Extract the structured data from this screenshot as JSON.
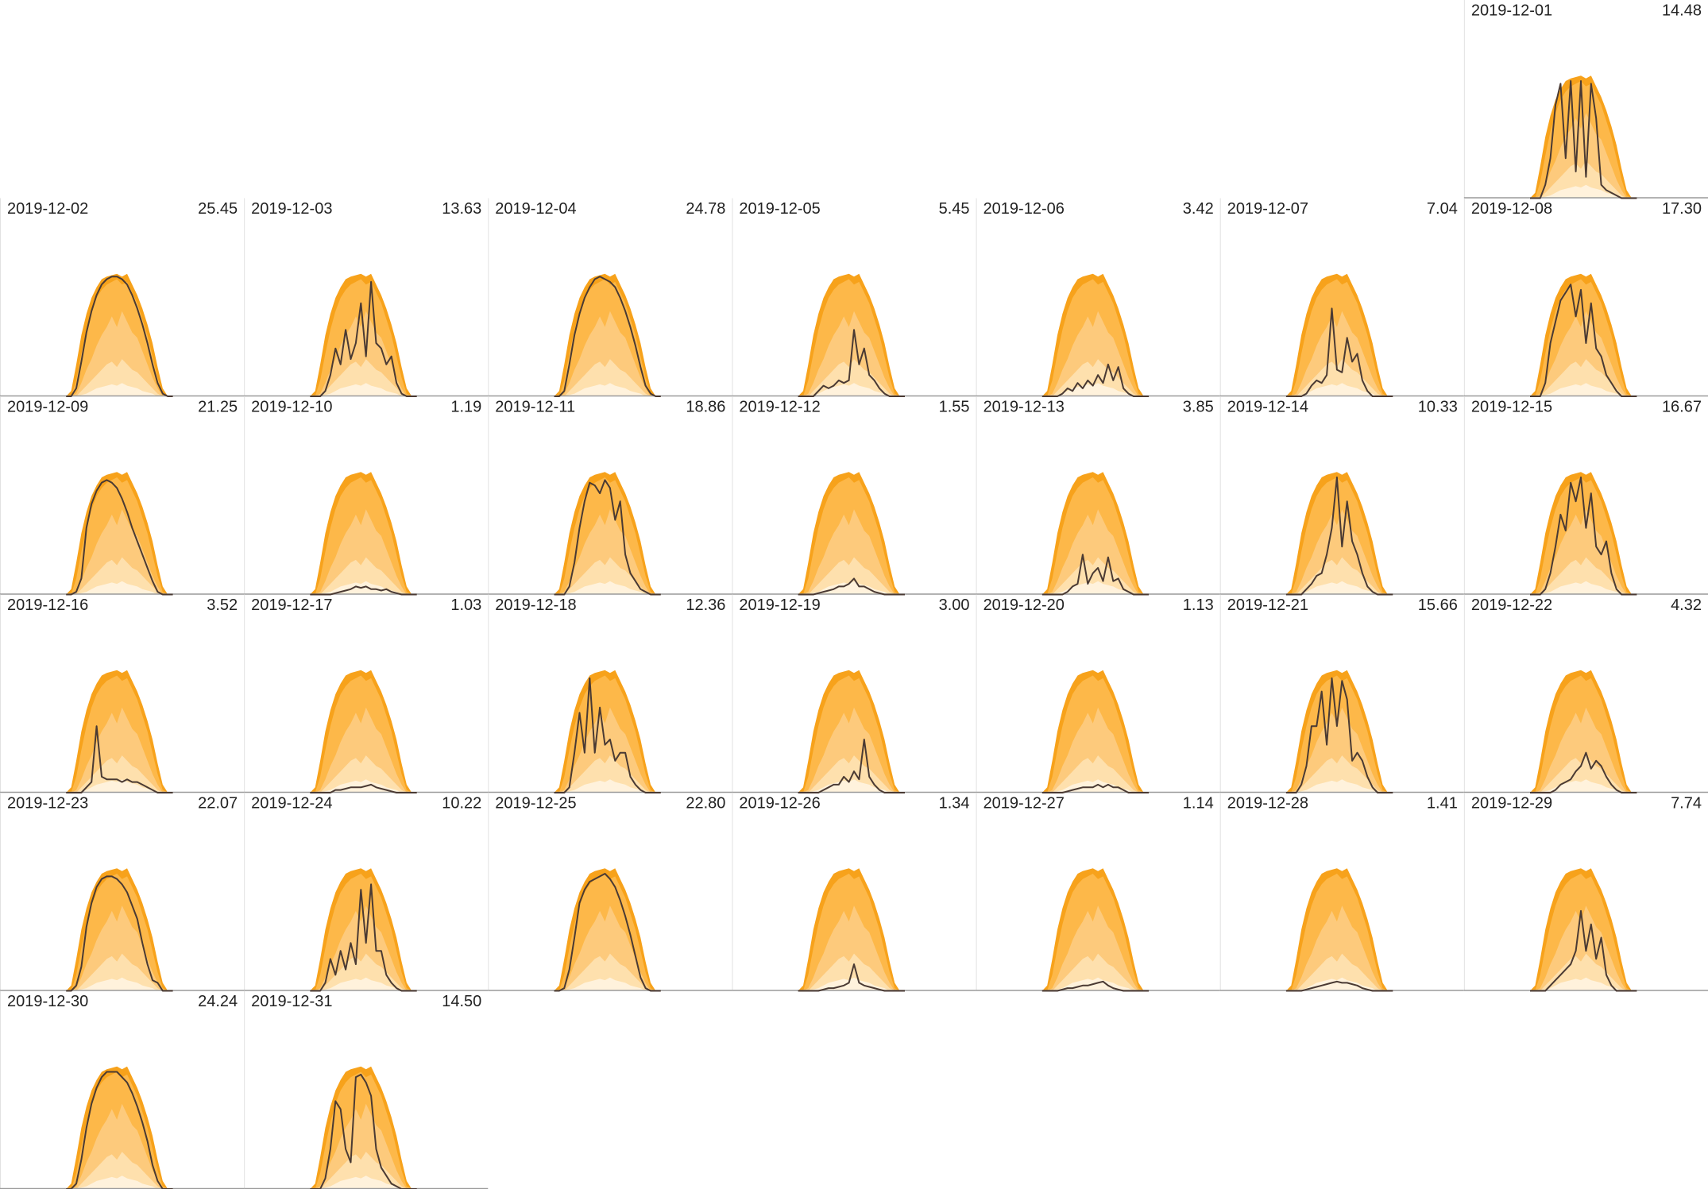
{
  "chart_data": {
    "type": "area",
    "xlim": [
      0,
      24
    ],
    "ylim": [
      0,
      6.25
    ],
    "x": [
      6.5,
      7,
      7.5,
      8,
      8.5,
      9,
      9.5,
      10,
      10.5,
      11,
      11.5,
      12,
      12.5,
      13,
      13.5,
      14,
      14.5,
      15,
      15.5,
      16,
      16.5,
      17
    ],
    "bands": [
      {
        "color": "#f7a21b",
        "values": [
          0,
          0.2,
          1.2,
          2.3,
          3.1,
          3.7,
          4.1,
          4.4,
          4.5,
          4.55,
          4.6,
          4.5,
          4.6,
          4.2,
          3.8,
          3.3,
          2.7,
          2.0,
          1.1,
          0.3,
          0,
          0
        ]
      },
      {
        "color": "#fdb849",
        "values": [
          0,
          0,
          0.6,
          1.6,
          2.5,
          3.2,
          3.7,
          4.0,
          4.2,
          4.3,
          4.4,
          4.2,
          4.3,
          3.9,
          3.5,
          2.9,
          2.3,
          1.5,
          0.7,
          0.1,
          0,
          0
        ]
      },
      {
        "color": "#fdca7c",
        "values": [
          0,
          0,
          0.1,
          0.5,
          1.0,
          1.4,
          1.9,
          2.3,
          2.6,
          3.0,
          2.6,
          3.2,
          2.8,
          2.4,
          2.2,
          1.7,
          1.2,
          0.7,
          0.3,
          0,
          0,
          0
        ]
      },
      {
        "color": "#fee0ad",
        "values": [
          0,
          0,
          0,
          0.2,
          0.4,
          0.6,
          0.8,
          1.0,
          1.2,
          1.3,
          1.1,
          1.4,
          1.2,
          1.0,
          0.9,
          0.7,
          0.5,
          0.3,
          0.1,
          0,
          0,
          0
        ]
      },
      {
        "color": "#fff2dc",
        "values": [
          0,
          0,
          0,
          0.05,
          0.1,
          0.2,
          0.3,
          0.35,
          0.4,
          0.45,
          0.4,
          0.5,
          0.4,
          0.35,
          0.3,
          0.2,
          0.15,
          0.1,
          0,
          0,
          0,
          0
        ]
      }
    ],
    "line_color": "#4a3a33",
    "dates": [
      "2019-12-01",
      "2019-12-02",
      "2019-12-03",
      "2019-12-04",
      "2019-12-05",
      "2019-12-06",
      "2019-12-07",
      "2019-12-08",
      "2019-12-09",
      "2019-12-10",
      "2019-12-11",
      "2019-12-12",
      "2019-12-13",
      "2019-12-14",
      "2019-12-15",
      "2019-12-16",
      "2019-12-17",
      "2019-12-18",
      "2019-12-19",
      "2019-12-20",
      "2019-12-21",
      "2019-12-22",
      "2019-12-23",
      "2019-12-24",
      "2019-12-25",
      "2019-12-26",
      "2019-12-27",
      "2019-12-28",
      "2019-12-29",
      "2019-12-30",
      "2019-12-31"
    ],
    "values": [
      14.48,
      25.45,
      13.63,
      24.78,
      5.45,
      3.42,
      7.04,
      17.3,
      21.25,
      1.19,
      18.86,
      1.55,
      3.85,
      10.33,
      16.67,
      3.52,
      1.03,
      12.36,
      3.0,
      1.13,
      15.66,
      4.32,
      22.07,
      10.22,
      22.8,
      1.34,
      1.14,
      1.41,
      7.74,
      24.24,
      14.5
    ],
    "value_labels": [
      "14.48",
      "25.45",
      "13.63",
      "24.78",
      "5.45",
      "3.42",
      "7.04",
      "17.30",
      "21.25",
      "1.19",
      "18.86",
      "1.55",
      "3.85",
      "10.33",
      "16.67",
      "3.52",
      "1.03",
      "12.36",
      "3.00",
      "1.13",
      "15.66",
      "4.32",
      "22.07",
      "10.22",
      "22.80",
      "1.34",
      "1.14",
      "1.41",
      "7.74",
      "24.24",
      "14.50"
    ],
    "lines": [
      [
        0,
        0,
        0,
        0.5,
        1.5,
        3.5,
        4.3,
        1.5,
        4.4,
        1.0,
        4.4,
        0.8,
        4.3,
        3.0,
        0.5,
        0.3,
        0.2,
        0.1,
        0,
        0,
        0,
        0
      ],
      [
        0,
        0,
        0.3,
        1.3,
        2.4,
        3.2,
        3.8,
        4.2,
        4.4,
        4.5,
        4.5,
        4.4,
        4.2,
        3.8,
        3.3,
        2.7,
        2.0,
        1.2,
        0.5,
        0.1,
        0,
        0
      ],
      [
        0,
        0,
        0,
        0.2,
        0.8,
        1.8,
        1.2,
        2.5,
        1.4,
        2.0,
        3.5,
        1.5,
        4.3,
        2.0,
        1.8,
        1.2,
        1.5,
        0.5,
        0.1,
        0,
        0,
        0
      ],
      [
        0,
        0,
        0.2,
        1.2,
        2.3,
        3.1,
        3.7,
        4.1,
        4.4,
        4.5,
        4.4,
        4.3,
        4.1,
        3.7,
        3.2,
        2.6,
        1.9,
        1.1,
        0.4,
        0.1,
        0,
        0
      ],
      [
        0,
        0,
        0,
        0,
        0.2,
        0.4,
        0.3,
        0.4,
        0.6,
        0.5,
        0.6,
        2.5,
        1.2,
        1.8,
        0.8,
        0.6,
        0.3,
        0.1,
        0,
        0,
        0,
        0
      ],
      [
        0,
        0,
        0,
        0,
        0.1,
        0.3,
        0.2,
        0.5,
        0.3,
        0.6,
        0.4,
        0.8,
        0.5,
        1.2,
        0.6,
        1.1,
        0.3,
        0.1,
        0,
        0,
        0,
        0
      ],
      [
        0,
        0,
        0,
        0,
        0.1,
        0.4,
        0.6,
        0.5,
        0.8,
        3.3,
        1.0,
        0.9,
        2.2,
        1.3,
        1.6,
        0.6,
        0.2,
        0,
        0,
        0,
        0,
        0
      ],
      [
        0,
        0,
        0,
        0.5,
        2.0,
        2.8,
        3.6,
        3.9,
        4.2,
        3.0,
        4.0,
        2.0,
        3.5,
        1.8,
        1.5,
        0.8,
        0.5,
        0.2,
        0,
        0,
        0,
        0
      ],
      [
        0,
        0,
        0.1,
        0.6,
        2.5,
        3.4,
        3.9,
        4.2,
        4.3,
        4.2,
        4.0,
        3.6,
        3.1,
        2.5,
        2.0,
        1.5,
        1.0,
        0.5,
        0.1,
        0,
        0,
        0
      ],
      [
        0,
        0,
        0,
        0,
        0,
        0.05,
        0.1,
        0.15,
        0.2,
        0.3,
        0.25,
        0.3,
        0.2,
        0.2,
        0.15,
        0.2,
        0.1,
        0.05,
        0,
        0,
        0,
        0
      ],
      [
        0,
        0,
        0,
        0.3,
        1.2,
        2.5,
        3.5,
        4.2,
        4.1,
        3.8,
        4.3,
        4.0,
        2.8,
        3.5,
        1.5,
        0.8,
        0.5,
        0.2,
        0.1,
        0,
        0,
        0
      ],
      [
        0,
        0,
        0,
        0,
        0.05,
        0.1,
        0.15,
        0.2,
        0.3,
        0.3,
        0.4,
        0.6,
        0.3,
        0.3,
        0.2,
        0.1,
        0.05,
        0,
        0,
        0,
        0,
        0
      ],
      [
        0,
        0,
        0,
        0,
        0,
        0.1,
        0.3,
        0.4,
        1.5,
        0.4,
        0.8,
        1.0,
        0.5,
        1.4,
        0.5,
        0.6,
        0.2,
        0.1,
        0,
        0,
        0,
        0
      ],
      [
        0,
        0,
        0,
        0,
        0.2,
        0.4,
        0.7,
        0.8,
        1.5,
        2.5,
        4.4,
        1.8,
        3.5,
        2.0,
        1.5,
        0.8,
        0.3,
        0.1,
        0,
        0,
        0,
        0
      ],
      [
        0,
        0,
        0,
        0.2,
        0.8,
        1.8,
        3.0,
        2.4,
        4.2,
        3.5,
        4.4,
        2.5,
        3.8,
        1.8,
        1.5,
        2.0,
        0.8,
        0.2,
        0,
        0,
        0,
        0
      ],
      [
        0,
        0,
        0,
        0,
        0.2,
        0.4,
        2.5,
        0.6,
        0.5,
        0.5,
        0.5,
        0.4,
        0.5,
        0.4,
        0.4,
        0.3,
        0.2,
        0.1,
        0,
        0,
        0,
        0
      ],
      [
        0,
        0,
        0,
        0,
        0,
        0.1,
        0.1,
        0.15,
        0.2,
        0.2,
        0.2,
        0.25,
        0.3,
        0.2,
        0.15,
        0.1,
        0.05,
        0,
        0,
        0,
        0,
        0
      ],
      [
        0,
        0,
        0,
        0.2,
        1.5,
        3.0,
        1.5,
        4.3,
        1.5,
        3.2,
        1.8,
        2.0,
        1.2,
        1.5,
        1.5,
        0.6,
        0.3,
        0.1,
        0,
        0,
        0,
        0
      ],
      [
        0,
        0,
        0,
        0,
        0,
        0.1,
        0.2,
        0.3,
        0.3,
        0.6,
        0.4,
        0.8,
        0.5,
        2.0,
        0.6,
        0.3,
        0.1,
        0,
        0,
        0,
        0,
        0
      ],
      [
        0,
        0,
        0,
        0,
        0,
        0.05,
        0.1,
        0.15,
        0.2,
        0.2,
        0.2,
        0.3,
        0.2,
        0.3,
        0.2,
        0.2,
        0.1,
        0,
        0,
        0,
        0,
        0
      ],
      [
        0,
        0,
        0,
        0.3,
        1.0,
        2.5,
        2.5,
        3.8,
        1.8,
        4.3,
        2.5,
        4.2,
        3.5,
        1.2,
        1.5,
        1.2,
        0.6,
        0.2,
        0,
        0,
        0,
        0
      ],
      [
        0,
        0,
        0,
        0,
        0,
        0.1,
        0.3,
        0.4,
        0.5,
        0.8,
        1.0,
        1.5,
        0.9,
        1.2,
        1.0,
        0.6,
        0.3,
        0.1,
        0,
        0,
        0,
        0
      ],
      [
        0,
        0,
        0.2,
        0.9,
        2.4,
        3.3,
        3.9,
        4.2,
        4.3,
        4.3,
        4.2,
        4.0,
        3.7,
        3.2,
        2.7,
        1.8,
        1.0,
        0.4,
        0.3,
        0,
        0,
        0
      ],
      [
        0,
        0,
        0,
        0.3,
        1.2,
        0.6,
        1.5,
        0.8,
        1.8,
        1.0,
        3.8,
        1.8,
        4.0,
        1.5,
        1.5,
        0.6,
        0.3,
        0.1,
        0,
        0,
        0,
        0
      ],
      [
        0,
        0,
        0.1,
        0.8,
        2.0,
        3.3,
        3.8,
        4.1,
        4.2,
        4.3,
        4.4,
        4.2,
        3.9,
        3.4,
        2.8,
        2.1,
        1.3,
        0.5,
        0.1,
        0,
        0,
        0
      ],
      [
        0,
        0,
        0,
        0,
        0,
        0.05,
        0.1,
        0.1,
        0.15,
        0.2,
        0.3,
        1.0,
        0.3,
        0.2,
        0.15,
        0.1,
        0.05,
        0,
        0,
        0,
        0,
        0
      ],
      [
        0,
        0,
        0,
        0,
        0.05,
        0.1,
        0.1,
        0.15,
        0.2,
        0.2,
        0.25,
        0.3,
        0.35,
        0.2,
        0.1,
        0.05,
        0,
        0,
        0,
        0,
        0,
        0
      ],
      [
        0,
        0,
        0,
        0,
        0.05,
        0.1,
        0.15,
        0.2,
        0.25,
        0.3,
        0.35,
        0.3,
        0.3,
        0.25,
        0.2,
        0.1,
        0.05,
        0,
        0,
        0,
        0,
        0
      ],
      [
        0,
        0,
        0,
        0,
        0.2,
        0.4,
        0.6,
        0.8,
        1.0,
        1.5,
        3.0,
        1.5,
        2.5,
        1.2,
        2.0,
        0.6,
        0.2,
        0,
        0,
        0,
        0,
        0
      ],
      [
        0,
        0,
        0.2,
        1.1,
        2.3,
        3.2,
        3.8,
        4.2,
        4.4,
        4.4,
        4.4,
        4.2,
        4.0,
        3.6,
        3.1,
        2.5,
        1.8,
        0.9,
        0.3,
        0,
        0,
        0
      ],
      [
        0,
        0,
        0,
        0.4,
        1.5,
        3.3,
        3.0,
        1.5,
        1.0,
        4.2,
        4.3,
        4.0,
        3.5,
        1.5,
        0.8,
        0.5,
        0.2,
        0.1,
        0,
        0,
        0,
        0
      ]
    ]
  }
}
